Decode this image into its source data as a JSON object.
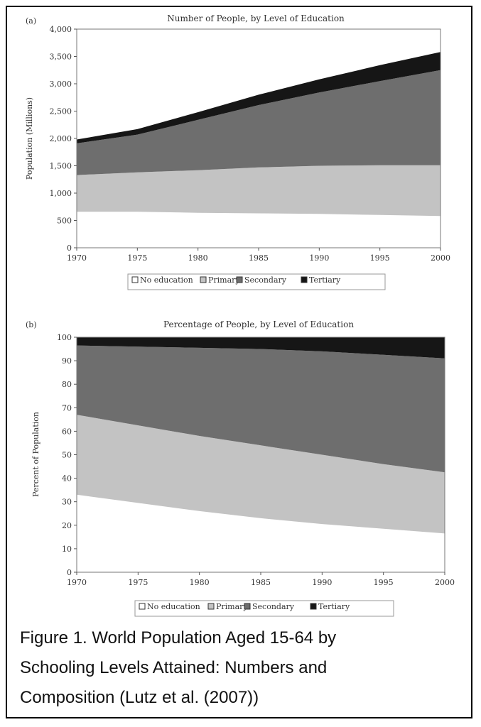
{
  "chart_data": [
    {
      "type": "area",
      "panel_label": "(a)",
      "title": "Number of People, by Level of Education",
      "ylabel": "Population (Millions)",
      "xlabel": "",
      "x": [
        1970,
        1975,
        1980,
        1985,
        1990,
        1995,
        2000
      ],
      "xlim": [
        1970,
        2000
      ],
      "ylim": [
        0,
        4000
      ],
      "yticks": [
        0,
        500,
        1000,
        1500,
        2000,
        2500,
        3000,
        3500,
        4000
      ],
      "ytick_labels": [
        "0",
        "500",
        "1,000",
        "1,500",
        "2,000",
        "2,500",
        "3,000",
        "3,500",
        "4,000"
      ],
      "xtick_labels": [
        "1970",
        "1975",
        "1980",
        "1985",
        "1990",
        "1995",
        "2000"
      ],
      "stacked": true,
      "series": [
        {
          "name": "No education",
          "color": "#ffffff",
          "values": [
            660,
            660,
            640,
            630,
            620,
            600,
            580
          ]
        },
        {
          "name": "Primary",
          "color": "#c3c3c3",
          "values": [
            670,
            720,
            780,
            840,
            880,
            910,
            930
          ]
        },
        {
          "name": "Secondary",
          "color": "#6e6e6e",
          "values": [
            580,
            690,
            920,
            1140,
            1340,
            1540,
            1740
          ]
        },
        {
          "name": "Tertiary",
          "color": "#161616",
          "values": [
            70,
            100,
            140,
            190,
            240,
            290,
            330
          ]
        }
      ],
      "legend": {
        "placement": "bottom",
        "items": [
          "No education",
          "Primary",
          "Secondary",
          "Tertiary"
        ]
      }
    },
    {
      "type": "area",
      "panel_label": "(b)",
      "title": "Percentage of People, by Level of Education",
      "ylabel": "Percent of Population",
      "xlabel": "",
      "x": [
        1970,
        1975,
        1980,
        1985,
        1990,
        1995,
        2000
      ],
      "xlim": [
        1970,
        2000
      ],
      "ylim": [
        0,
        100
      ],
      "yticks": [
        0,
        10,
        20,
        30,
        40,
        50,
        60,
        70,
        80,
        90,
        100
      ],
      "ytick_labels": [
        "0",
        "10",
        "20",
        "30",
        "40",
        "50",
        "60",
        "70",
        "80",
        "90",
        "100"
      ],
      "xtick_labels": [
        "1970",
        "1975",
        "1980",
        "1985",
        "1990",
        "1995",
        "2000"
      ],
      "stacked": true,
      "series": [
        {
          "name": "No education",
          "color": "#ffffff",
          "values": [
            33,
            29.5,
            26,
            23,
            20.5,
            18.5,
            16.5
          ]
        },
        {
          "name": "Primary",
          "color": "#c3c3c3",
          "values": [
            34,
            33,
            32,
            31,
            29.5,
            27.5,
            26
          ]
        },
        {
          "name": "Secondary",
          "color": "#6e6e6e",
          "values": [
            29.5,
            33.5,
            37.5,
            41,
            44,
            46.5,
            48.5
          ]
        },
        {
          "name": "Tertiary",
          "color": "#161616",
          "values": [
            3.5,
            4,
            4.5,
            5,
            6,
            7.5,
            9
          ]
        }
      ],
      "legend": {
        "placement": "bottom",
        "items": [
          "No education",
          "Primary",
          "Secondary",
          "Tertiary"
        ]
      }
    }
  ],
  "caption": {
    "line1": "Figure 1.  World Population Aged 15-64 by",
    "line2": "Schooling Levels Attained:  Numbers and",
    "line3": "Composition (Lutz et al. (2007))"
  }
}
